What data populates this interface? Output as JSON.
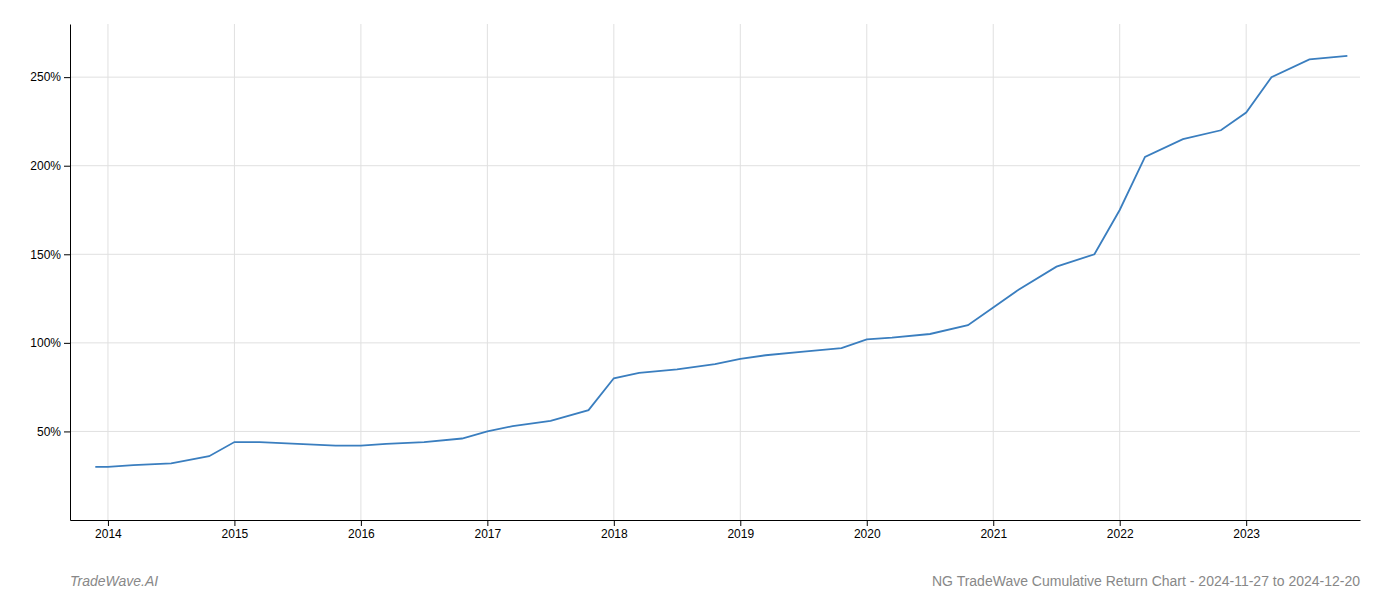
{
  "chart_data": {
    "type": "line",
    "title": "NG TradeWave Cumulative Return Chart - 2024-11-27 to 2024-12-20",
    "annotations": [
      "TradeWave.AI"
    ],
    "color": "#3a7ebf",
    "x": [
      2013.9,
      2014.0,
      2014.2,
      2014.5,
      2014.8,
      2015.0,
      2015.2,
      2015.5,
      2015.8,
      2016.0,
      2016.2,
      2016.5,
      2016.8,
      2017.0,
      2017.2,
      2017.5,
      2017.8,
      2018.0,
      2018.2,
      2018.5,
      2018.8,
      2019.0,
      2019.2,
      2019.5,
      2019.8,
      2020.0,
      2020.2,
      2020.5,
      2020.8,
      2021.0,
      2021.2,
      2021.5,
      2021.8,
      2022.0,
      2022.2,
      2022.5,
      2022.8,
      2023.0,
      2023.2,
      2023.5,
      2023.8
    ],
    "values": [
      0.3,
      0.3,
      0.31,
      0.32,
      0.36,
      0.44,
      0.44,
      0.43,
      0.42,
      0.42,
      0.43,
      0.44,
      0.46,
      0.5,
      0.53,
      0.56,
      0.62,
      0.8,
      0.83,
      0.85,
      0.88,
      0.91,
      0.93,
      0.95,
      0.97,
      1.02,
      1.03,
      1.05,
      1.1,
      1.2,
      1.3,
      1.43,
      1.5,
      1.75,
      2.05,
      2.15,
      2.2,
      2.3,
      2.5,
      2.6,
      2.62
    ],
    "xlim": [
      2013.7,
      2023.9
    ],
    "ylim": [
      0.0,
      2.8
    ],
    "xticks": [
      2014,
      2015,
      2016,
      2017,
      2018,
      2019,
      2020,
      2021,
      2022,
      2023
    ],
    "yticks": [
      {
        "value": 0.5,
        "label": "50%"
      },
      {
        "value": 1.0,
        "label": "100%"
      },
      {
        "value": 1.5,
        "label": "150%"
      },
      {
        "value": 2.0,
        "label": "200%"
      },
      {
        "value": 2.5,
        "label": "250%"
      }
    ],
    "grid": true
  }
}
